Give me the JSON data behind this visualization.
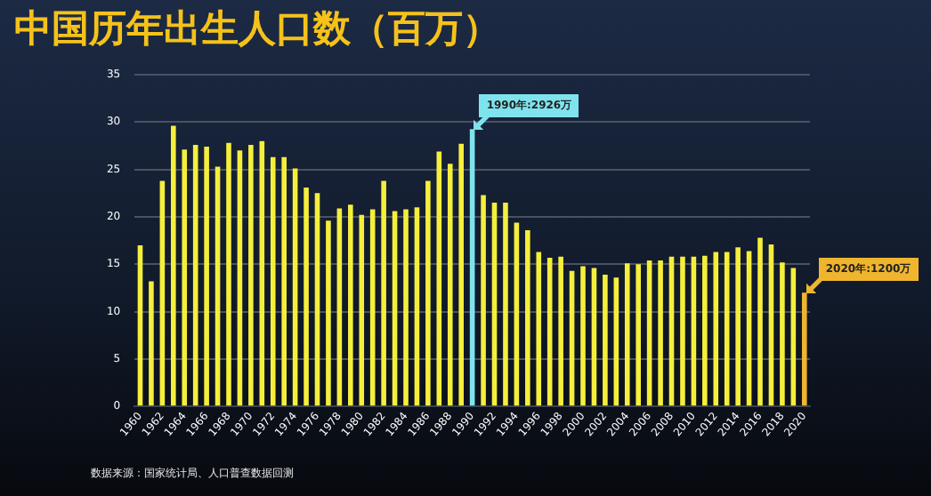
{
  "chart_data": {
    "type": "bar",
    "title": "中国历年出生人口数（百万）",
    "categories": [
      "1960",
      null,
      "1962",
      null,
      "1964",
      null,
      "1966",
      null,
      "1968",
      null,
      "1970",
      null,
      "1972",
      null,
      "1974",
      null,
      "1976",
      null,
      "1978",
      null,
      "1980",
      null,
      "1982",
      null,
      "1984",
      null,
      "1986",
      null,
      "1988",
      null,
      "1990",
      null,
      "1992",
      null,
      "1994",
      null,
      "1996",
      null,
      "1998",
      null,
      "2000",
      null,
      "2002",
      null,
      "2004",
      null,
      "2006",
      null,
      "2008",
      null,
      "2010",
      null,
      "2012",
      null,
      "2014",
      null,
      "2016",
      null,
      "2018",
      null,
      "2020"
    ],
    "values": [
      17.0,
      13.2,
      23.8,
      29.6,
      27.1,
      27.6,
      27.4,
      25.3,
      27.8,
      27.0,
      27.6,
      28.0,
      26.3,
      26.3,
      25.1,
      23.1,
      22.5,
      19.6,
      20.9,
      21.3,
      20.2,
      20.8,
      23.8,
      20.6,
      20.8,
      21.0,
      23.8,
      26.9,
      25.6,
      27.7,
      29.26,
      22.3,
      21.5,
      21.5,
      19.4,
      18.6,
      16.3,
      15.7,
      15.8,
      14.3,
      14.8,
      14.6,
      13.9,
      13.6,
      15.1,
      15.0,
      15.4,
      15.4,
      15.8,
      15.8,
      15.8,
      15.9,
      16.3,
      16.3,
      16.8,
      16.4,
      17.8,
      17.1,
      15.2,
      14.6,
      12.0
    ],
    "colors": [
      "#f5ef3c",
      "#f5ef3c",
      "#f5ef3c",
      "#f5ef3c",
      "#f5ef3c",
      "#f5ef3c",
      "#f5ef3c",
      "#f5ef3c",
      "#f5ef3c",
      "#f5ef3c",
      "#f5ef3c",
      "#f5ef3c",
      "#f5ef3c",
      "#f5ef3c",
      "#f5ef3c",
      "#f5ef3c",
      "#f5ef3c",
      "#f5ef3c",
      "#f5ef3c",
      "#f5ef3c",
      "#f5ef3c",
      "#f5ef3c",
      "#f5ef3c",
      "#f5ef3c",
      "#f5ef3c",
      "#f5ef3c",
      "#f5ef3c",
      "#f5ef3c",
      "#f5ef3c",
      "#f5ef3c",
      "#7fe3ee",
      "#f5ef3c",
      "#f5ef3c",
      "#f5ef3c",
      "#f5ef3c",
      "#f5ef3c",
      "#f5ef3c",
      "#f5ef3c",
      "#f5ef3c",
      "#f5ef3c",
      "#f5ef3c",
      "#f5ef3c",
      "#f5ef3c",
      "#f5ef3c",
      "#f5ef3c",
      "#f5ef3c",
      "#f5ef3c",
      "#f5ef3c",
      "#f5ef3c",
      "#f5ef3c",
      "#f5ef3c",
      "#f5ef3c",
      "#f5ef3c",
      "#f5ef3c",
      "#f5ef3c",
      "#f5ef3c",
      "#f5ef3c",
      "#f5ef3c",
      "#f5ef3c",
      "#f5ef3c",
      "#f0b52e"
    ],
    "ylim": [
      0,
      35
    ],
    "yticks": [
      0,
      5,
      10,
      15,
      20,
      25,
      30,
      35
    ],
    "grid": "y",
    "legend": false,
    "annotations": [
      {
        "text": "1990年:2926万",
        "x": "1990",
        "y": 29.26
      },
      {
        "text": "2020年:1200万",
        "x": "2020",
        "y": 12.0
      },
      "数据来源：国家统计局、人口普查数据回测"
    ]
  }
}
